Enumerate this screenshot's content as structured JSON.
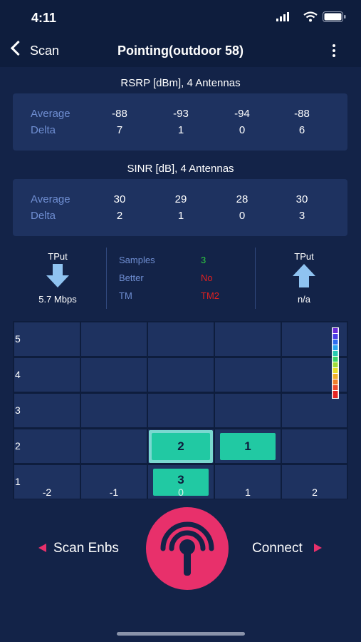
{
  "status": {
    "time": "4:11"
  },
  "nav": {
    "back_label": "Scan",
    "title": "Pointing(outdoor 58)"
  },
  "rsrp": {
    "title": "RSRP [dBm], 4 Antennas",
    "average_label": "Average",
    "delta_label": "Delta",
    "average": [
      "-88",
      "-93",
      "-94",
      "-88"
    ],
    "delta": [
      "7",
      "1",
      "0",
      "6"
    ]
  },
  "sinr": {
    "title": "SINR [dB], 4 Antennas",
    "average_label": "Average",
    "delta_label": "Delta",
    "average": [
      "30",
      "29",
      "28",
      "30"
    ],
    "delta": [
      "2",
      "1",
      "0",
      "3"
    ]
  },
  "tput_down": {
    "label": "TPut",
    "value": "5.7 Mbps",
    "icon": "arrow-down-icon"
  },
  "tput_up": {
    "label": "TPut",
    "value": "n/a",
    "icon": "arrow-up-icon"
  },
  "info": {
    "samples_label": "Samples",
    "samples_value": "3",
    "better_label": "Better",
    "better_value": "No",
    "tm_label": "TM",
    "tm_value": "TM2"
  },
  "grid": {
    "y_labels": [
      "5",
      "4",
      "3",
      "2",
      "1"
    ],
    "x_labels": [
      "-2",
      "-1",
      "0",
      "1",
      "2"
    ],
    "tiles": [
      {
        "x": "0",
        "y": "2",
        "label": "2"
      },
      {
        "x": "1",
        "y": "2",
        "label": "1"
      },
      {
        "x": "0",
        "y": "1",
        "label": "3"
      }
    ]
  },
  "bottom": {
    "scan_label": "Scan Enbs",
    "connect_label": "Connect"
  },
  "colors": {
    "background": "#132348",
    "header": "#0e1d3d",
    "card": "#1e3260",
    "label_blue": "#6f8ed2",
    "accent_pink": "#e8306b",
    "tile_green": "#21c9a3",
    "samples_green": "#2ecc40",
    "alert_red": "#e02020"
  }
}
